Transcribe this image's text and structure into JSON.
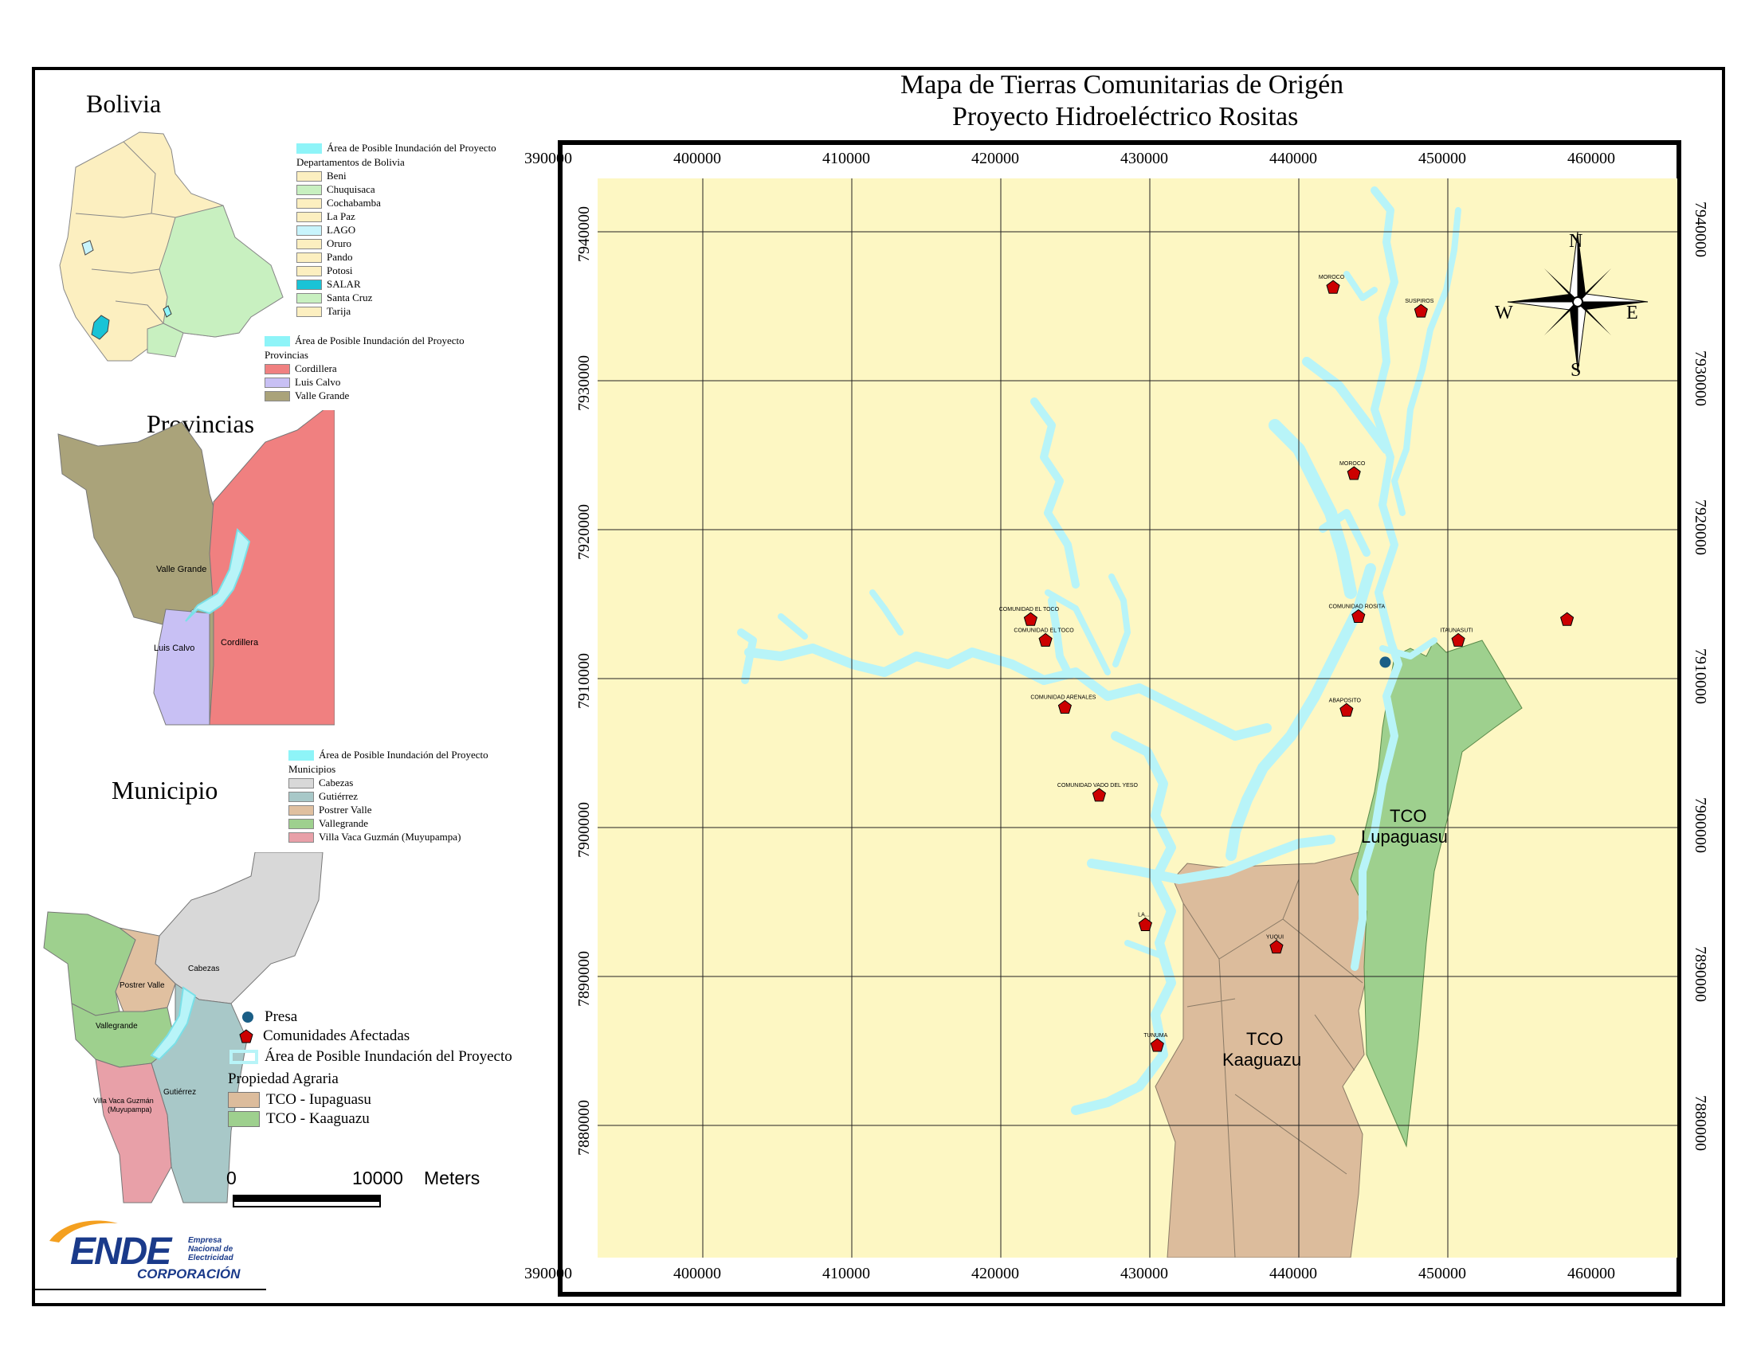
{
  "title": {
    "line1": "Mapa de Tierras Comunitarias de Origén",
    "line2": "Proyecto Hidroeléctrico Rositas"
  },
  "inset_bolivia": {
    "heading": "Bolivia",
    "legend_title_area": "Área de Posible Inundación del Proyecto",
    "legend_subtitle": "Departamentos de Bolivia",
    "items": [
      {
        "label": "Beni",
        "color": "#fcefc0"
      },
      {
        "label": "Chuquisaca",
        "color": "#c8f0c0"
      },
      {
        "label": "Cochabamba",
        "color": "#fcefc0"
      },
      {
        "label": "La Paz",
        "color": "#fcefc0"
      },
      {
        "label": "LAGO",
        "color": "#c8f4fc"
      },
      {
        "label": "Oruro",
        "color": "#fcefc0"
      },
      {
        "label": "Pando",
        "color": "#fcefc0"
      },
      {
        "label": "Potosi",
        "color": "#fcefc0"
      },
      {
        "label": "SALAR",
        "color": "#19c3d6"
      },
      {
        "label": "Santa Cruz",
        "color": "#c8f0c0"
      },
      {
        "label": "Tarija",
        "color": "#fcefc0"
      }
    ]
  },
  "inset_provincias": {
    "heading": "Provincias",
    "legend_title_area": "Área de Posible Inundación del Proyecto",
    "legend_subtitle": "Provincias",
    "items": [
      {
        "label": "Cordillera",
        "color": "#f08080"
      },
      {
        "label": "Luis Calvo",
        "color": "#c8c0f4"
      },
      {
        "label": "Valle Grande",
        "color": "#aaa37a"
      }
    ],
    "map_labels": [
      "Valle Grande",
      "Luis Calvo",
      "Cordillera"
    ]
  },
  "inset_municipio": {
    "heading": "Municipio",
    "legend_title_area": "Área de Posible Inundación del Proyecto",
    "legend_subtitle": "Municipios",
    "items": [
      {
        "label": "Cabezas",
        "color": "#d8d8d8"
      },
      {
        "label": "Gutiérrez",
        "color": "#a8c8c8"
      },
      {
        "label": "Postrer Valle",
        "color": "#e0c0a0"
      },
      {
        "label": "Vallegrande",
        "color": "#9ed08e"
      },
      {
        "label": "Villa Vaca Guzmán (Muyupampa)",
        "color": "#e8a0a8"
      }
    ],
    "map_labels": [
      "Cabezas",
      "Postrer Valle",
      "Vallegrande",
      "Gutiérrez",
      "Villa Vaca Guzmán",
      "(Muyupampa)"
    ]
  },
  "main_legend": {
    "presa": "Presa",
    "comunidades": "Comunidades Afectadas",
    "area": "Área de Posible Inundación del Proyecto",
    "propiedad_title": "Propiedad Agraria",
    "tco_iupaguasu": "TCO - Iupaguasu",
    "tco_kaaguazu": "TCO - Kaaguazu",
    "colors": {
      "iupaguasu": "#dcbc9c",
      "kaaguazu": "#9ed08e",
      "presa": "#1a5e86",
      "comunidad": "#cc0000",
      "area": "#b8f4f8"
    }
  },
  "scale_bar": {
    "start": "0",
    "end": "10000",
    "unit": "Meters"
  },
  "logo": {
    "text": "ENDE",
    "line1": "Empresa",
    "line2": "Nacional de",
    "line3": "Electricidad",
    "sub": "CORPORACIÓN"
  },
  "map": {
    "background": "#fdf7c3",
    "x_ticks": [
      "390000",
      "400000",
      "410000",
      "420000",
      "430000",
      "440000",
      "450000",
      "460000"
    ],
    "y_ticks": [
      "7940000",
      "7930000",
      "7920000",
      "7910000",
      "7900000",
      "7890000",
      "7880000"
    ],
    "compass": {
      "n": "N",
      "s": "S",
      "e": "E",
      "w": "W"
    },
    "tco_labels": {
      "lupaguasu_1": "TCO",
      "lupaguasu_2": "Lupaguasu",
      "kaaguazu_1": "TCO",
      "kaaguazu_2": "Kaaguazu"
    },
    "communities": [
      {
        "name": "MOROCO",
        "x": 442300,
        "y": 7936300
      },
      {
        "name": "SUSPIROS",
        "x": 448200,
        "y": 7934700
      },
      {
        "name": "MOROCO",
        "x": 443700,
        "y": 7923800
      },
      {
        "name": "COMUNIDAD ROSITA",
        "x": 444000,
        "y": 7914200
      },
      {
        "name": "ITAUNASUTI",
        "x": 450700,
        "y": 7912600
      },
      {
        "name": "",
        "x": 458000,
        "y": 7914000
      },
      {
        "name": "COMUNIDAD EL TOCO",
        "x": 422000,
        "y": 7914000
      },
      {
        "name": "COMUNIDAD EL TOCO",
        "x": 423000,
        "y": 7912600
      },
      {
        "name": "COMUNIDAD ARENALES",
        "x": 424300,
        "y": 7908100
      },
      {
        "name": "ABAPOSITO",
        "x": 443200,
        "y": 7907900
      },
      {
        "name": "COMUNIDAD VADO DEL YESO",
        "x": 426600,
        "y": 7902200
      },
      {
        "name": "LA...",
        "x": 429700,
        "y": 7893500
      },
      {
        "name": "YUQUI",
        "x": 438500,
        "y": 7892000
      },
      {
        "name": "TUNUMA",
        "x": 430500,
        "y": 7885400
      }
    ],
    "presa_location": {
      "x": 445800,
      "y": 7911100
    }
  }
}
